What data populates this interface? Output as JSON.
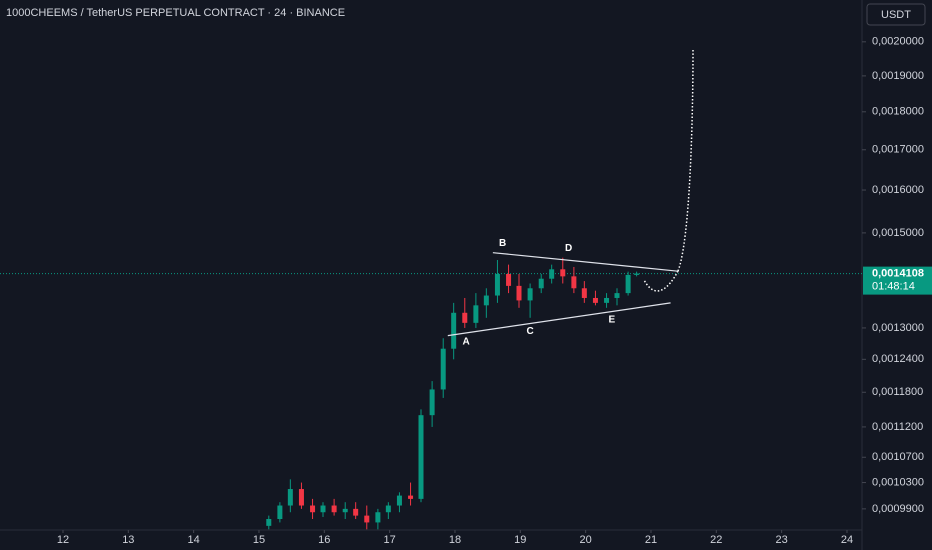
{
  "chart_data": {
    "type": "candlestick",
    "title": "1000CHEEMS / TetherUS PERPETUAL CONTRACT · 24 · BINANCE",
    "currency": "USDT",
    "log_scale": true,
    "up_color": "#089981",
    "down_color": "#f23645",
    "x": [
      15.15,
      15.32,
      15.48,
      15.65,
      15.82,
      15.98,
      16.15,
      16.32,
      16.48,
      16.65,
      16.82,
      16.98,
      17.15,
      17.32,
      17.48,
      17.65,
      17.82,
      17.98,
      18.15,
      18.32,
      18.48,
      18.65,
      18.82,
      18.98,
      19.15,
      19.32,
      19.48,
      19.65,
      19.82,
      19.98,
      20.15,
      20.32,
      20.48,
      20.65,
      20.78
    ],
    "open": [
      0.000965,
      0.000975,
      0.000995,
      0.00102,
      0.000995,
      0.000985,
      0.000995,
      0.000985,
      0.00099,
      0.00098,
      0.00097,
      0.000985,
      0.000995,
      0.00101,
      0.001005,
      0.00114,
      0.001185,
      0.00126,
      0.00133,
      0.00131,
      0.001345,
      0.001365,
      0.00141,
      0.001385,
      0.001355,
      0.00138,
      0.0014,
      0.00142,
      0.001405,
      0.00138,
      0.00136,
      0.00135,
      0.00136,
      0.00137,
      0.001408
    ],
    "high": [
      0.00098,
      0.001,
      0.001035,
      0.00103,
      0.001005,
      0.001,
      0.001005,
      0.001,
      0.001,
      0.000995,
      0.00099,
      0.001,
      0.001015,
      0.00103,
      0.00115,
      0.0012,
      0.00128,
      0.00135,
      0.00136,
      0.00137,
      0.00138,
      0.00144,
      0.00143,
      0.00141,
      0.00139,
      0.00141,
      0.00143,
      0.001445,
      0.001425,
      0.001395,
      0.001375,
      0.00137,
      0.00138,
      0.001415,
      0.001415
    ],
    "low": [
      0.00096,
      0.00097,
      0.000985,
      0.00099,
      0.000975,
      0.000978,
      0.00098,
      0.000975,
      0.000975,
      0.00096,
      0.00096,
      0.000975,
      0.000985,
      0.000995,
      0.001,
      0.00112,
      0.00117,
      0.00124,
      0.0013,
      0.0013,
      0.00132,
      0.00135,
      0.00137,
      0.00134,
      0.00132,
      0.00137,
      0.00139,
      0.00139,
      0.00137,
      0.00135,
      0.001345,
      0.00134,
      0.001345,
      0.001365,
      0.001405
    ],
    "close": [
      0.000975,
      0.000995,
      0.00102,
      0.000995,
      0.000985,
      0.000995,
      0.000985,
      0.00099,
      0.00098,
      0.00097,
      0.000985,
      0.000995,
      0.00101,
      0.001005,
      0.00114,
      0.001185,
      0.00126,
      0.00133,
      0.00131,
      0.001345,
      0.001365,
      0.00141,
      0.001385,
      0.001355,
      0.00138,
      0.0014,
      0.00142,
      0.001405,
      0.00138,
      0.00136,
      0.00135,
      0.00136,
      0.00137,
      0.001408,
      0.001411
    ],
    "xlim": [
      11.036,
      24.23
    ],
    "xticks": [
      12,
      13,
      14,
      15,
      16,
      17,
      18,
      19,
      20,
      21,
      22,
      23,
      24
    ],
    "ylim": [
      0.000959,
      0.00213
    ],
    "yticks": [
      {
        "value": 0.002,
        "label": "0,0020000"
      },
      {
        "value": 0.0019,
        "label": "0,0019000"
      },
      {
        "value": 0.0018,
        "label": "0,0018000"
      },
      {
        "value": 0.0017,
        "label": "0,0017000"
      },
      {
        "value": 0.0016,
        "label": "0,0016000"
      },
      {
        "value": 0.0015,
        "label": "0,0015000"
      },
      {
        "value": 0.0013,
        "label": "0,0013000"
      },
      {
        "value": 0.00124,
        "label": "0,0012400"
      },
      {
        "value": 0.00118,
        "label": "0,0011800"
      },
      {
        "value": 0.00112,
        "label": "0,0011200"
      },
      {
        "value": 0.00107,
        "label": "0,0010700"
      },
      {
        "value": 0.00103,
        "label": "0,0010300"
      },
      {
        "value": 0.00099,
        "label": "0,0009900"
      }
    ],
    "last_price": {
      "value": 0.0014108,
      "label": "0,0014108"
    },
    "countdown": "01:48:14",
    "trend_lines": [
      {
        "x": [
          18.58,
          21.41
        ],
        "y": [
          0.001456,
          0.001416
        ]
      },
      {
        "x": [
          17.89,
          21.3
        ],
        "y": [
          0.001285,
          0.00135
        ]
      }
    ],
    "annotations": [
      {
        "label": "A",
        "x": 18.17,
        "y": 0.001273
      },
      {
        "label": "B",
        "x": 18.73,
        "y": 0.001476
      },
      {
        "label": "C",
        "x": 19.15,
        "y": 0.001293
      },
      {
        "label": "D",
        "x": 19.74,
        "y": 0.001465
      },
      {
        "label": "E",
        "x": 20.4,
        "y": 0.001316
      }
    ]
  }
}
